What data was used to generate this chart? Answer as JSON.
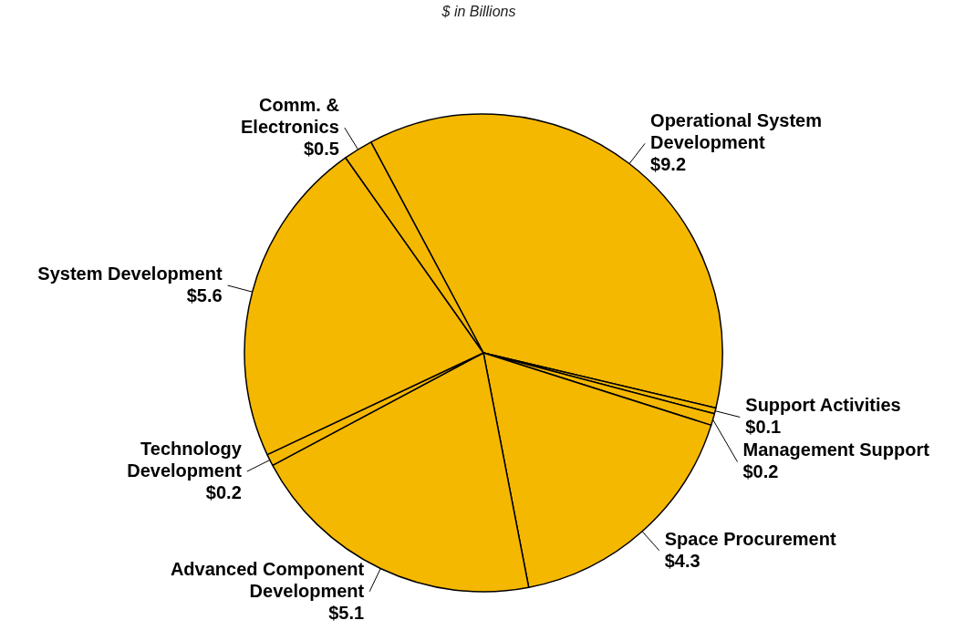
{
  "chart_data": {
    "type": "pie",
    "title": "$ in Billions",
    "categories": [
      "Operational System Development",
      "Support Activities",
      "Management Support",
      "Space Procurement",
      "Advanced Component Development",
      "Technology Development",
      "System Development",
      "Comm. & Electronics"
    ],
    "values": [
      9.2,
      0.1,
      0.2,
      4.3,
      5.1,
      0.2,
      5.6,
      0.5
    ],
    "value_labels": [
      "$9.2",
      "$0.1",
      "$0.2",
      "$4.3",
      "$5.1",
      "$0.2",
      "$5.6",
      "$0.5"
    ],
    "colors": [
      "#f5b800",
      "#f5b800",
      "#f5b800",
      "#f5b800",
      "#f5b800",
      "#f5b800",
      "#f5b800",
      "#f5b800"
    ]
  }
}
